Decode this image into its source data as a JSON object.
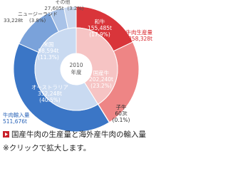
{
  "chart_data": {
    "type": "donut",
    "center_label": [
      "2010",
      "年度"
    ],
    "inner": {
      "labels": [
        "牛肉生産量",
        "牛肉輸入量"
      ],
      "values": [
        358328,
        511676
      ],
      "value_labels": [
        "358,328t",
        "511,676t"
      ],
      "colors": [
        "#f6c4c4",
        "#c9daf1"
      ],
      "text_colors": [
        "#d8262c",
        "#2a64b8"
      ]
    },
    "outer": {
      "labels": [
        "和牛",
        "国産牛",
        "子牛",
        "オーストラリア",
        "米国",
        "ニュージーランド",
        "その他"
      ],
      "values": [
        155485,
        202240,
        603,
        352248,
        98594,
        33228,
        27605
      ],
      "value_labels": [
        "155,485t",
        "202,240t",
        "603t",
        "352,248t",
        "98,594t",
        "33,228t",
        "27,605t"
      ],
      "percents": [
        17.9,
        23.2,
        0.1,
        40.5,
        11.3,
        3.8,
        3.2
      ],
      "percent_labels": [
        "(17.9%)",
        "(23.2%)",
        "(0.1%)",
        "(40.5%)",
        "(11.3%)",
        "(3.8%)",
        "(3.2%)"
      ],
      "colors": [
        "#d9353a",
        "#ee8585",
        "#f7b0b0",
        "#3b76c6",
        "#7aa2da",
        "#a9c3e8",
        "#c9d8ef"
      ]
    },
    "caption": [
      "国産牛肉の生産量と海外産牛肉の輸入量",
      "※クリックで拡大します。"
    ]
  }
}
